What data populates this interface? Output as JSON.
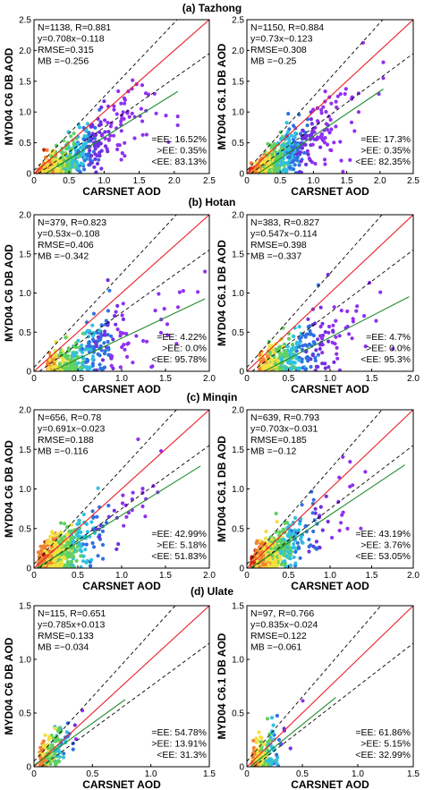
{
  "sections": [
    {
      "title": "(a) Tazhong"
    },
    {
      "title": "(b) Hotan"
    },
    {
      "title": "(c) Minqin"
    },
    {
      "title": "(d) Ulate"
    }
  ],
  "colors": {
    "one_to_one_line": "#e8202a",
    "ee_envelope_line": "#000000",
    "fit_line": "#1e8c2a",
    "density_scale": [
      "#c02010",
      "#f08030",
      "#f0e040",
      "#60d060",
      "#30c0e0",
      "#3070e0",
      "#7030e0",
      "#9030f0"
    ]
  },
  "chart_data": [
    {
      "type": "scatter",
      "site": "Tazhong",
      "collection": "C6",
      "xlabel": "CARSNET AOD",
      "ylabel": "MYD04 C6 DB AOD",
      "xlim": [
        0,
        2.5
      ],
      "ylim": [
        0,
        2.5
      ],
      "xticks": [
        "0",
        "0.5",
        "1.0",
        "1.5",
        "2.0",
        "2.5"
      ],
      "yticks": [
        "0",
        "0.5",
        "1.0",
        "1.5",
        "2.0",
        "2.5"
      ],
      "stats": [
        "N=1138, R=0.881",
        "y=0.708x−0.118",
        "RMSE=0.315",
        "MB =−0.256"
      ],
      "ee": [
        "=EE: 16.52%",
        ">EE: 0.35%",
        "<EE: 83.13%"
      ],
      "fit": {
        "slope": 0.708,
        "intercept": -0.118,
        "xmax": 2.05
      }
    },
    {
      "type": "scatter",
      "site": "Tazhong",
      "collection": "C6.1",
      "xlabel": "CARSNET AOD",
      "ylabel": "MYD04 C6.1 DB AOD",
      "xlim": [
        0,
        2.5
      ],
      "ylim": [
        0,
        2.5
      ],
      "xticks": [
        "0",
        "0.5",
        "1.0",
        "1.5",
        "2.0",
        "2.5"
      ],
      "yticks": [
        "0",
        "0.5",
        "1.0",
        "1.5",
        "2.0",
        "2.5"
      ],
      "stats": [
        "N=1150, R=0.884",
        "y=0.73x−0.123",
        "RMSE=0.308",
        "MB =−0.25"
      ],
      "ee": [
        "=EE: 17.3%",
        ">EE: 0.35%",
        "<EE: 82.35%"
      ],
      "fit": {
        "slope": 0.73,
        "intercept": -0.123,
        "xmax": 2.05
      }
    },
    {
      "type": "scatter",
      "site": "Hotan",
      "collection": "C6",
      "xlabel": "CARSNET AOD",
      "ylabel": "MYD04 C6 DB AOD",
      "xlim": [
        0,
        2.0
      ],
      "ylim": [
        0,
        2.0
      ],
      "xticks": [
        "0",
        "0.5",
        "1.0",
        "1.5",
        "2.0"
      ],
      "yticks": [
        "0",
        "0.5",
        "1.0",
        "1.5",
        "2.0"
      ],
      "stats": [
        "N=379, R=0.823",
        "y=0.53x−0.108",
        "RMSE=0.406",
        "MB =−0.342"
      ],
      "ee": [
        "=EE: 4.22%",
        ">EE: 0.0%",
        "<EE: 95.78%"
      ],
      "fit": {
        "slope": 0.53,
        "intercept": -0.108,
        "xmax": 1.95
      }
    },
    {
      "type": "scatter",
      "site": "Hotan",
      "collection": "C6.1",
      "xlabel": "CARSNET AOD",
      "ylabel": "MYD04 C6.1 DB AOD",
      "xlim": [
        0,
        2.0
      ],
      "ylim": [
        0,
        2.0
      ],
      "xticks": [
        "0",
        "0.5",
        "1.0",
        "1.5",
        "2.0"
      ],
      "yticks": [
        "0",
        "0.5",
        "1.0",
        "1.5",
        "2.0"
      ],
      "stats": [
        "N=383, R=0.827",
        "y=0.547x−0.114",
        "RMSE=0.398",
        "MB =−0.337"
      ],
      "ee": [
        "=EE: 4.7%",
        ">EE: 0.0%",
        "<EE: 95.3%"
      ],
      "fit": {
        "slope": 0.547,
        "intercept": -0.114,
        "xmax": 1.95
      }
    },
    {
      "type": "scatter",
      "site": "Minqin",
      "collection": "C6",
      "xlabel": "CARSNET AOD",
      "ylabel": "MYD04 C6 DB AOD",
      "xlim": [
        0,
        2.0
      ],
      "ylim": [
        0,
        2.0
      ],
      "xticks": [
        "0",
        "0.5",
        "1.0",
        "1.5",
        "2.0"
      ],
      "yticks": [
        "0",
        "0.5",
        "1.0",
        "1.5",
        "2.0"
      ],
      "stats": [
        "N=656, R=0.78",
        "y=0.691x−0.023",
        "RMSE=0.188",
        "MB =−0.116"
      ],
      "ee": [
        "=EE: 42.99%",
        ">EE: 5.18%",
        "<EE: 51.83%"
      ],
      "fit": {
        "slope": 0.691,
        "intercept": -0.023,
        "xmax": 1.9
      }
    },
    {
      "type": "scatter",
      "site": "Minqin",
      "collection": "C6.1",
      "xlabel": "CARSNET AOD",
      "ylabel": "MYD04 C6.1 DB AOD",
      "xlim": [
        0,
        2.0
      ],
      "ylim": [
        0,
        2.0
      ],
      "xticks": [
        "0",
        "0.5",
        "1.0",
        "1.5",
        "2.0"
      ],
      "yticks": [
        "0",
        "0.5",
        "1.0",
        "1.5",
        "2.0"
      ],
      "stats": [
        "N=639, R=0.793",
        "y=0.703x−0.031",
        "RMSE=0.185",
        "MB =−0.12"
      ],
      "ee": [
        "=EE: 43.19%",
        ">EE: 3.76%",
        "<EE: 53.05%"
      ],
      "fit": {
        "slope": 0.703,
        "intercept": -0.031,
        "xmax": 1.9
      }
    },
    {
      "type": "scatter",
      "site": "Ulate",
      "collection": "C6",
      "xlabel": "CARSNET AOD",
      "ylabel": "MYD04 C6 DB AOD",
      "xlim": [
        0,
        1.5
      ],
      "ylim": [
        0,
        1.5
      ],
      "xticks": [
        "0",
        "0.5",
        "1.0",
        "1.5"
      ],
      "yticks": [
        "0",
        "0.5",
        "1.0",
        "1.5"
      ],
      "stats": [
        "N=115, R=0.651",
        "y=0.785x+0.013",
        "RMSE=0.133",
        "MB =−0.034"
      ],
      "ee": [
        "=EE: 54.78%",
        ">EE: 13.91%",
        "<EE: 31.3%"
      ],
      "fit": {
        "slope": 0.785,
        "intercept": 0.013,
        "xmax": 0.78
      }
    },
    {
      "type": "scatter",
      "site": "Ulate",
      "collection": "C6.1",
      "xlabel": "CARSNET AOD",
      "ylabel": "MYD04 C6.1 DB AOD",
      "xlim": [
        0,
        1.5
      ],
      "ylim": [
        0,
        1.5
      ],
      "xticks": [
        "0",
        "0.5",
        "1.0",
        "1.5"
      ],
      "yticks": [
        "0",
        "0.5",
        "1.0",
        "1.5"
      ],
      "stats": [
        "N=97, R=0.766",
        "y=0.835x−0.024",
        "RMSE=0.122",
        "MB =−0.061"
      ],
      "ee": [
        "=EE: 61.86%",
        ">EE: 5.15%",
        "<EE: 32.99%"
      ],
      "fit": {
        "slope": 0.835,
        "intercept": -0.024,
        "xmax": 0.8
      }
    }
  ]
}
